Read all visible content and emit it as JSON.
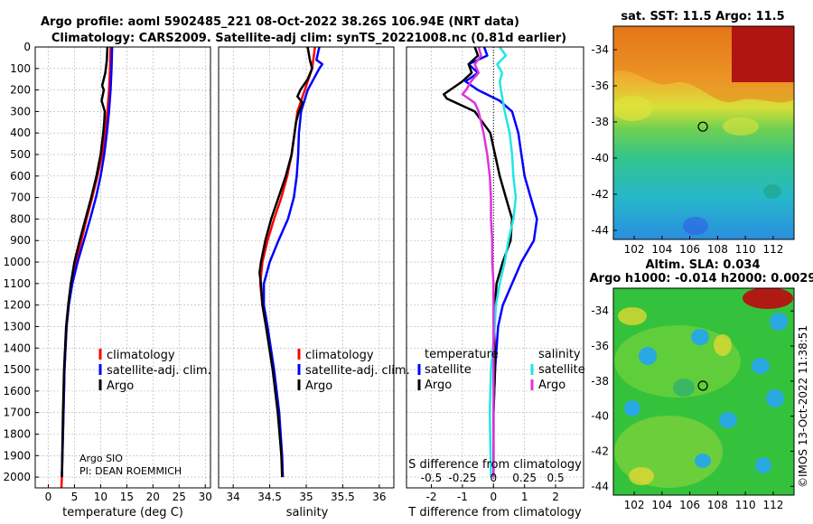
{
  "header": {
    "line1": "Argo profile: aoml 5902485_221 08-Oct-2022 38.26S 106.94E (NRT data)",
    "line2": "Climatology: CARS2009. Satellite-adj clim: synTS_20221008.nc (0.81d earlier)"
  },
  "colors": {
    "climatology": "#ff0000",
    "satellite": "#0000ff",
    "argo": "#000000",
    "sal_sat": "#22e5e5",
    "sal_argo": "#dd33dd"
  },
  "chart_data": [
    {
      "type": "line",
      "id": "temperature",
      "xlabel": "temperature (deg C)",
      "ylabel": "depth",
      "xlim": [
        -2.5,
        31
      ],
      "ylim": [
        0,
        2050
      ],
      "xticks": [
        0,
        5,
        10,
        15,
        20,
        25,
        30
      ],
      "xtick_labels": [
        "0",
        "5",
        "10",
        "15",
        "20",
        "25",
        "30"
      ],
      "yticks": [
        0,
        100,
        200,
        300,
        400,
        500,
        600,
        700,
        800,
        900,
        1000,
        1100,
        1200,
        1300,
        1400,
        1500,
        1600,
        1700,
        1800,
        1900,
        2000
      ],
      "ytick_labels": [
        "0",
        "100",
        "200",
        "300",
        "400",
        "500",
        "600",
        "700",
        "800",
        "900",
        "1000",
        "1100",
        "1200",
        "1300",
        "1400",
        "1500",
        "1600",
        "1700",
        "1800",
        "1900",
        "2000"
      ],
      "legend": [
        "climatology",
        "satellite-adj. clim.",
        "Argo"
      ],
      "annotations": [
        "Argo SIO",
        "PI: DEAN ROEMMICH"
      ],
      "series": [
        {
          "name": "climatology",
          "depth": [
            0,
            100,
            200,
            300,
            400,
            500,
            600,
            700,
            800,
            900,
            1000,
            1100,
            1200,
            1300,
            1500,
            1700,
            2000,
            2050
          ],
          "values": [
            11.9,
            11.8,
            11.6,
            11.3,
            10.9,
            10.3,
            9.4,
            8.4,
            7.3,
            6.3,
            5.3,
            4.5,
            3.9,
            3.5,
            3.1,
            2.9,
            2.6,
            2.5
          ]
        },
        {
          "name": "satellite-adj. clim.",
          "depth": [
            0,
            100,
            200,
            300,
            400,
            500,
            600,
            700,
            800,
            900,
            1000,
            1100,
            1200,
            1300,
            1500,
            1700,
            2000
          ],
          "values": [
            12.2,
            12.1,
            11.9,
            11.6,
            11.2,
            10.7,
            10.0,
            9.1,
            8.0,
            6.8,
            5.6,
            4.6,
            3.9,
            3.5,
            3.1,
            2.9,
            2.6
          ]
        },
        {
          "name": "Argo",
          "depth": [
            0,
            60,
            120,
            180,
            200,
            250,
            300,
            350,
            400,
            500,
            600,
            700,
            800,
            900,
            1000,
            1100,
            1200,
            1300,
            1500,
            1700,
            2000
          ],
          "values": [
            11.3,
            11.2,
            10.9,
            10.3,
            10.6,
            10.2,
            10.8,
            10.7,
            10.5,
            10.0,
            9.2,
            8.2,
            7.1,
            6.0,
            5.0,
            4.3,
            3.8,
            3.4,
            3.0,
            2.8,
            2.6
          ]
        }
      ]
    },
    {
      "type": "line",
      "id": "salinity",
      "xlabel": "salinity",
      "xlim": [
        33.8,
        36.2
      ],
      "ylim": [
        0,
        2050
      ],
      "xticks": [
        34,
        34.5,
        35,
        35.5,
        36
      ],
      "xtick_labels": [
        "34",
        "34.5",
        "35",
        "35.5",
        "36"
      ],
      "legend": [
        "climatology",
        "satellite-adj. clim.",
        "Argo"
      ],
      "series": [
        {
          "name": "climatology",
          "depth": [
            0,
            100,
            200,
            300,
            400,
            500,
            600,
            700,
            800,
            900,
            1000,
            1100,
            1200,
            1300,
            1500,
            1700,
            1900,
            2000
          ],
          "values": [
            35.12,
            35.08,
            34.98,
            34.88,
            34.84,
            34.8,
            34.74,
            34.66,
            34.56,
            34.47,
            34.4,
            34.37,
            34.4,
            34.45,
            34.55,
            34.62,
            34.66,
            34.68
          ]
        },
        {
          "name": "satellite-adj. clim.",
          "depth": [
            0,
            60,
            80,
            100,
            150,
            200,
            300,
            400,
            500,
            600,
            700,
            800,
            900,
            1000,
            1100,
            1200,
            1300,
            1500,
            1700,
            1900,
            2000
          ],
          "values": [
            35.18,
            35.14,
            35.22,
            35.18,
            35.1,
            35.02,
            34.93,
            34.9,
            34.89,
            34.87,
            34.83,
            34.75,
            34.62,
            34.5,
            34.42,
            34.42,
            34.47,
            34.56,
            34.63,
            34.67,
            34.68
          ]
        },
        {
          "name": "Argo",
          "depth": [
            0,
            60,
            100,
            150,
            200,
            230,
            260,
            300,
            350,
            400,
            500,
            600,
            700,
            800,
            900,
            1000,
            1050,
            1100,
            1200,
            1300,
            1500,
            1700,
            1900,
            2000
          ],
          "values": [
            35.02,
            35.05,
            35.08,
            35.02,
            34.92,
            34.88,
            34.95,
            34.9,
            34.86,
            34.84,
            34.8,
            34.72,
            34.62,
            34.52,
            34.44,
            34.38,
            34.36,
            34.38,
            34.4,
            34.45,
            34.54,
            34.61,
            34.66,
            34.67
          ]
        }
      ]
    },
    {
      "type": "line",
      "id": "differences",
      "xlabel": "T difference from climatology",
      "xlabel2": "S difference from climatology",
      "xlim": [
        -2.8,
        2.9
      ],
      "ylim": [
        0,
        2050
      ],
      "xticks": [
        -2,
        -1,
        0,
        1,
        2
      ],
      "xtick_labels": [
        "-2",
        "-1",
        "0",
        "1",
        "2"
      ],
      "sticks": [
        -0.5,
        -0.25,
        0,
        0.25,
        0.5
      ],
      "stick_labels": [
        "-0.5",
        "-0.25",
        "0",
        "0.25",
        "0.5"
      ],
      "s_scale": 4,
      "legend_temperature": {
        "title": "temperature",
        "items": [
          "satellite",
          "Argo"
        ]
      },
      "legend_salinity": {
        "title": "salinity",
        "items": [
          "satellite",
          "Argo"
        ]
      },
      "series": [
        {
          "name": "T satellite",
          "depth": [
            0,
            40,
            80,
            120,
            160,
            200,
            250,
            300,
            400,
            500,
            600,
            700,
            800,
            900,
            1000,
            1100,
            1200,
            1300,
            1500,
            1700,
            2000
          ],
          "values": [
            -0.3,
            -0.2,
            -0.8,
            -0.5,
            -0.9,
            -0.5,
            0.2,
            0.6,
            0.8,
            0.9,
            1.0,
            1.2,
            1.4,
            1.3,
            0.9,
            0.6,
            0.3,
            0.15,
            0.05,
            0.0,
            0.0
          ]
        },
        {
          "name": "T Argo",
          "depth": [
            0,
            40,
            80,
            120,
            160,
            200,
            220,
            240,
            260,
            300,
            400,
            500,
            600,
            700,
            800,
            900,
            1000,
            1100,
            1200,
            1300,
            1500,
            1700,
            2000
          ],
          "values": [
            -0.6,
            -0.5,
            -0.8,
            -0.7,
            -1.0,
            -1.4,
            -1.6,
            -1.5,
            -1.2,
            -0.6,
            -0.1,
            0.05,
            0.2,
            0.4,
            0.6,
            0.55,
            0.3,
            0.1,
            0.05,
            0.02,
            0.05,
            0.0,
            0.0
          ]
        },
        {
          "name": "S satellite",
          "depth": [
            0,
            40,
            80,
            120,
            160,
            200,
            300,
            400,
            500,
            600,
            700,
            800,
            900,
            1000,
            1100,
            1200,
            1300,
            1500,
            1700,
            2000
          ],
          "values": [
            0.05,
            0.1,
            0.03,
            0.07,
            0.05,
            0.06,
            0.09,
            0.13,
            0.15,
            0.16,
            0.18,
            0.16,
            0.12,
            0.09,
            0.05,
            0.02,
            0.01,
            -0.02,
            -0.03,
            -0.02
          ]
        },
        {
          "name": "S Argo",
          "depth": [
            0,
            40,
            80,
            120,
            160,
            200,
            220,
            240,
            260,
            300,
            400,
            500,
            600,
            700,
            800,
            900,
            1000,
            1100,
            1200,
            1300,
            1500,
            1700,
            2000
          ],
          "values": [
            -0.12,
            -0.1,
            -0.15,
            -0.12,
            -0.18,
            -0.22,
            -0.25,
            -0.2,
            -0.15,
            -0.12,
            -0.08,
            -0.05,
            -0.03,
            -0.02,
            -0.02,
            -0.01,
            -0.01,
            0.0,
            0.0,
            0.0,
            0.0,
            0.0,
            0.0
          ]
        }
      ]
    },
    {
      "type": "heatmap",
      "id": "sst_map",
      "title": "sat. SST: 11.5 Argo: 11.5",
      "xticks": [
        102,
        104,
        106,
        108,
        110,
        112
      ],
      "xtick_labels": [
        "102",
        "104",
        "106",
        "108",
        "110",
        "112"
      ],
      "yticks": [
        -34,
        -36,
        -38,
        -40,
        -42,
        -44
      ],
      "ytick_labels": [
        "-34",
        "-36",
        "-38",
        "-40",
        "-42",
        "-44"
      ],
      "xlim": [
        100.5,
        113.5
      ],
      "ylim": [
        -44.5,
        -32.7
      ],
      "marker": [
        106.94,
        -38.26
      ]
    },
    {
      "type": "heatmap",
      "id": "sla_map",
      "title": "Altim. SLA: 0.034",
      "subtitle": "Argo h1000: -0.014 h2000: 0.0029",
      "xticks": [
        102,
        104,
        106,
        108,
        110,
        112
      ],
      "xtick_labels": [
        "102",
        "104",
        "106",
        "108",
        "110",
        "112"
      ],
      "yticks": [
        -34,
        -36,
        -38,
        -40,
        -42,
        -44
      ],
      "ytick_labels": [
        "-34",
        "-36",
        "-38",
        "-40",
        "-42",
        "-44"
      ],
      "xlim": [
        100.5,
        113.5
      ],
      "ylim": [
        -44.5,
        -32.7
      ],
      "marker": [
        106.94,
        -38.26
      ]
    }
  ],
  "footer": {
    "timestamp": "©IMOS 13-Oct-2022 11:38:51"
  }
}
